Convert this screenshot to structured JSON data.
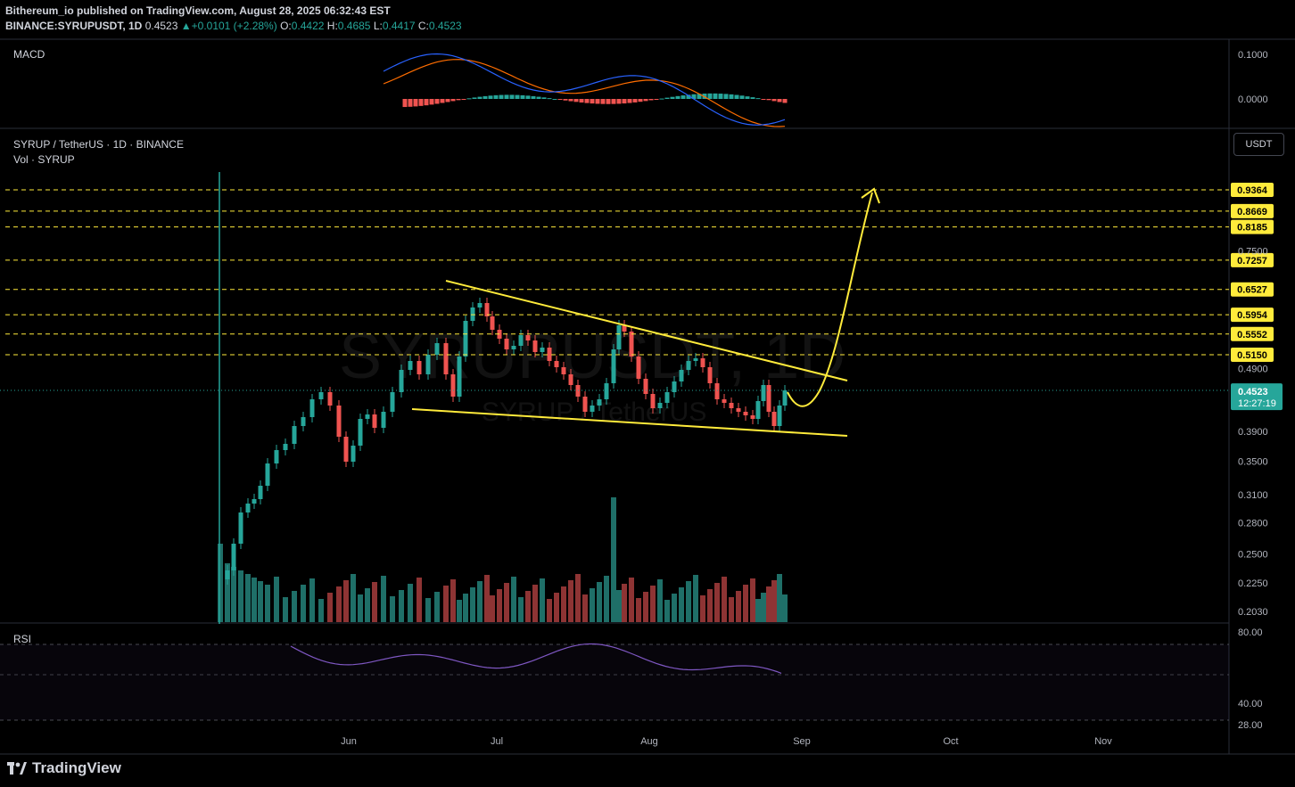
{
  "header": {
    "publisher_line": "Bithereum_io published on TradingView.com, August 28, 2025 06:32:43 EST",
    "symbol": "BINANCE:SYRUPUSDT, 1D",
    "last": "0.4523",
    "change": "+0.0101 (+2.28%)",
    "o_label": "O:",
    "o": "0.4422",
    "h_label": "H:",
    "h": "0.4685",
    "l_label": "L:",
    "l": "0.4417",
    "c_label": "C:",
    "c": "0.4523"
  },
  "panes": {
    "macd_label": "MACD",
    "main_title": "SYRUP / TetherUS · 1D · BINANCE",
    "vol_label": "Vol · SYRUP",
    "rsi_label": "RSI",
    "currency_button": "USDT",
    "watermark_symbol": "SYRUPUSDT, 1D",
    "watermark_name": "SYRUP / TetherUS"
  },
  "colors": {
    "bull": "#26a69a",
    "bear": "#ef5350",
    "bull_vol": "#1f6f68",
    "bear_vol": "#8e3434",
    "annotation": "#ffeb3b",
    "macd_line": "#2962ff",
    "signal_line": "#ff6d00",
    "rsi_line": "#7e57c2",
    "price_label": "#26a69a"
  },
  "footer": {
    "brand": "TradingView"
  },
  "chart_data": {
    "type": "candlestick",
    "price_axis": {
      "scale": "log",
      "tick_labels": [
        "0.2030",
        "0.2250",
        "0.2500",
        "0.2800",
        "0.3100",
        "0.3500",
        "0.3900",
        "0.4900",
        "0.7500"
      ]
    },
    "time_axis": {
      "labels": [
        "Jun",
        "Jul",
        "Aug",
        "Sep",
        "Oct",
        "Nov"
      ]
    },
    "current_price": {
      "value": "0.4523",
      "countdown": "12:27:19"
    },
    "resistance_levels": [
      "0.9364",
      "0.8669",
      "0.8185",
      "0.7257",
      "0.6527",
      "0.5954",
      "0.5552",
      "0.5150"
    ],
    "pattern": {
      "name": "falling wedge",
      "upper_line": [
        0.66,
        0.51
      ],
      "lower_line": [
        0.425,
        0.384
      ]
    },
    "projection": {
      "from": 0.43,
      "to": 0.9364
    },
    "macd_axis": {
      "tick_labels": [
        "0.1000",
        "0.0000"
      ]
    },
    "rsi_axis": {
      "tick_labels": [
        "80.00",
        "40.00",
        "28.00"
      ]
    },
    "rsi_bands": [
      70,
      30
    ]
  }
}
